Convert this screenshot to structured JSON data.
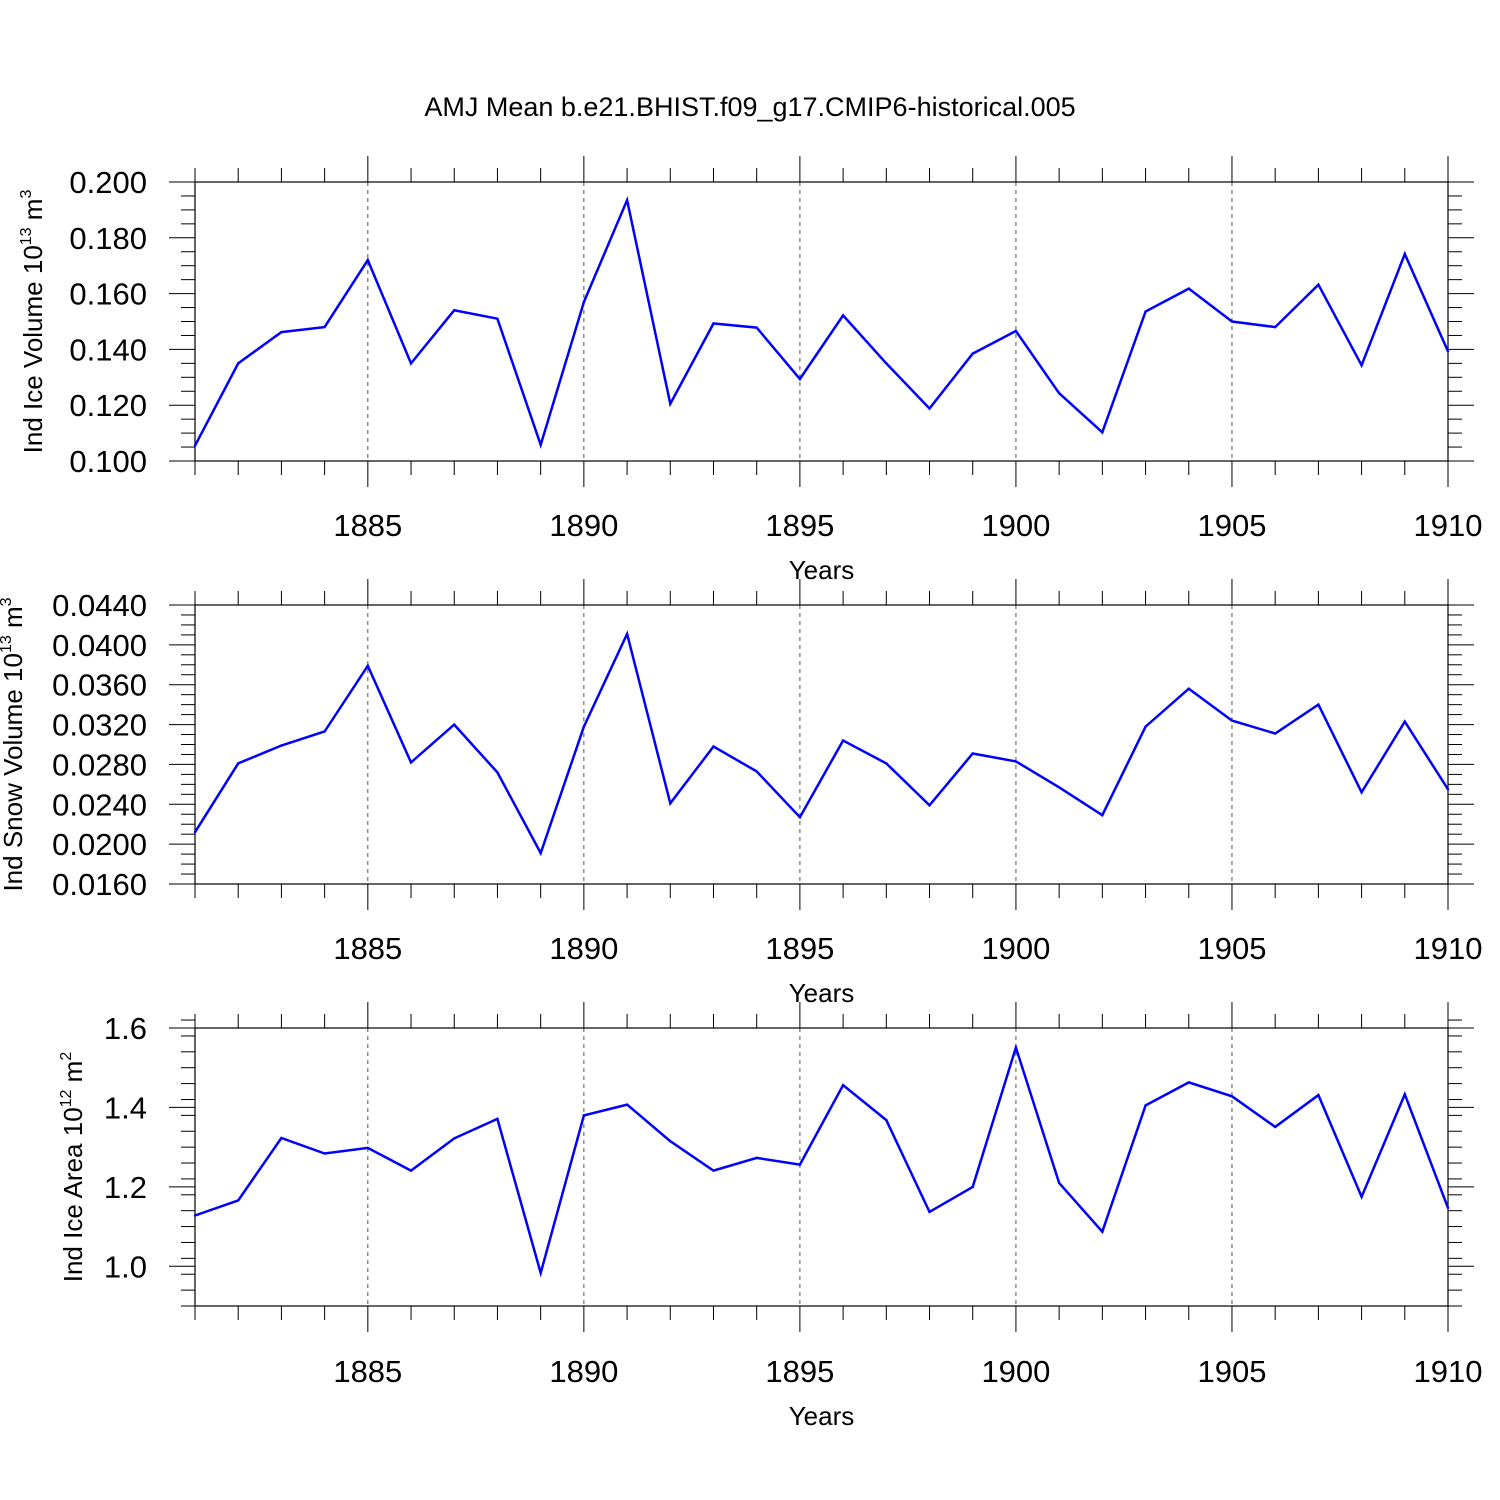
{
  "title": "AMJ Mean b.e21.BHIST.f09_g17.CMIP6-historical.005",
  "colors": {
    "line": "#0000ff",
    "axis": "#000000",
    "grid": "#555555"
  },
  "chart_data": [
    {
      "type": "line",
      "ylabel": {
        "text": "Ind Ice Volume 10",
        "sup": "13",
        "unit": " m",
        "unit_sup": "3"
      },
      "xlabel": "Years",
      "xlim": [
        1881,
        1910
      ],
      "ylim": [
        0.1,
        0.2
      ],
      "x_ticks": [
        "1885",
        "1890",
        "1895",
        "1900",
        "1905",
        "1910"
      ],
      "y_ticks": [
        "0.100",
        "0.120",
        "0.140",
        "0.160",
        "0.180",
        "0.200"
      ],
      "y_minor_step": 0.005,
      "grid": "vertical dashed at major x ticks",
      "series": [
        {
          "name": "Ind Ice Volume",
          "x": [
            1881,
            1882,
            1883,
            1884,
            1885,
            1886,
            1887,
            1888,
            1889,
            1890,
            1891,
            1892,
            1893,
            1894,
            1895,
            1896,
            1897,
            1898,
            1899,
            1900,
            1901,
            1902,
            1903,
            1904,
            1905,
            1906,
            1907,
            1908,
            1909,
            1910
          ],
          "values": [
            0.1055,
            0.135,
            0.1462,
            0.148,
            0.172,
            0.135,
            0.154,
            0.151,
            0.1058,
            0.157,
            0.1935,
            0.1205,
            0.1493,
            0.1478,
            0.1294,
            0.1522,
            0.135,
            0.1188,
            0.1385,
            0.1466,
            0.1243,
            0.1103,
            0.1536,
            0.1618,
            0.15,
            0.148,
            0.1632,
            0.1343,
            0.1742,
            0.1393
          ]
        }
      ]
    },
    {
      "type": "line",
      "ylabel": {
        "text": "Ind Snow Volume 10",
        "sup": "13",
        "unit": " m",
        "unit_sup": "3"
      },
      "xlabel": "Years",
      "xlim": [
        1881,
        1910
      ],
      "ylim": [
        0.016,
        0.044
      ],
      "x_ticks": [
        "1885",
        "1890",
        "1895",
        "1900",
        "1905",
        "1910"
      ],
      "y_ticks": [
        "0.0160",
        "0.0200",
        "0.0240",
        "0.0280",
        "0.0320",
        "0.0360",
        "0.0400",
        "0.0440"
      ],
      "y_minor_step": 0.001,
      "grid": "vertical dashed at major x ticks",
      "series": [
        {
          "name": "Ind Snow Volume",
          "x": [
            1881,
            1882,
            1883,
            1884,
            1885,
            1886,
            1887,
            1888,
            1889,
            1890,
            1891,
            1892,
            1893,
            1894,
            1895,
            1896,
            1897,
            1898,
            1899,
            1900,
            1901,
            1902,
            1903,
            1904,
            1905,
            1906,
            1907,
            1908,
            1909,
            1910
          ],
          "values": [
            0.0212,
            0.0281,
            0.0299,
            0.0313,
            0.0379,
            0.0282,
            0.032,
            0.0272,
            0.0191,
            0.0318,
            0.0411,
            0.0241,
            0.0298,
            0.0273,
            0.0227,
            0.0304,
            0.0281,
            0.0239,
            0.0291,
            0.0283,
            0.0257,
            0.0229,
            0.0318,
            0.0356,
            0.0324,
            0.0311,
            0.034,
            0.0252,
            0.0323,
            0.0255
          ]
        }
      ]
    },
    {
      "type": "line",
      "ylabel": {
        "text": "Ind Ice Area 10",
        "sup": "12",
        "unit": " m",
        "unit_sup": "2"
      },
      "xlabel": "Years",
      "xlim": [
        1881,
        1910
      ],
      "ylim": [
        0.9,
        1.6
      ],
      "x_ticks": [
        "1885",
        "1890",
        "1895",
        "1900",
        "1905",
        "1910"
      ],
      "y_ticks": [
        "1.0",
        "1.2",
        "1.4",
        "1.6"
      ],
      "y_tick_values": [
        1.0,
        1.2,
        1.4,
        1.6
      ],
      "y_minor_step": 0.04,
      "grid": "vertical dashed at major x ticks",
      "series": [
        {
          "name": "Ind Ice Area",
          "x": [
            1881,
            1882,
            1883,
            1884,
            1885,
            1886,
            1887,
            1888,
            1889,
            1890,
            1891,
            1892,
            1893,
            1894,
            1895,
            1896,
            1897,
            1898,
            1899,
            1900,
            1901,
            1902,
            1903,
            1904,
            1905,
            1906,
            1907,
            1908,
            1909,
            1910
          ],
          "values": [
            1.128,
            1.166,
            1.323,
            1.284,
            1.298,
            1.241,
            1.322,
            1.371,
            0.983,
            1.38,
            1.407,
            1.315,
            1.241,
            1.273,
            1.256,
            1.456,
            1.368,
            1.137,
            1.2,
            1.551,
            1.21,
            1.087,
            1.405,
            1.463,
            1.428,
            1.351,
            1.431,
            1.175,
            1.433,
            1.147
          ]
        }
      ]
    }
  ]
}
